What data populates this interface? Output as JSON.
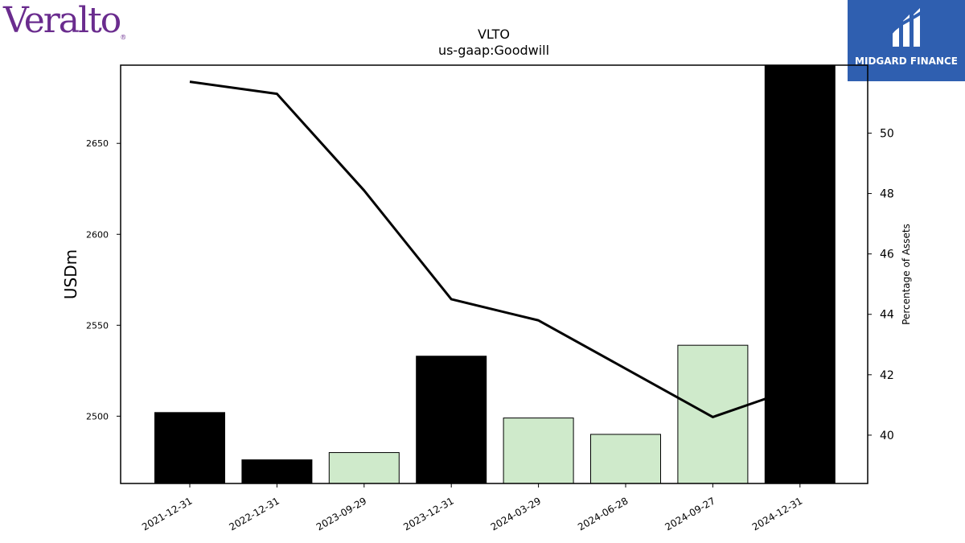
{
  "logos": {
    "left_text": "Veralto",
    "left_tm": "®",
    "left_color": "#6a2c8e",
    "right_text": "MIDGARD FINANCE",
    "right_color": "#2f5fb0"
  },
  "chart_data": {
    "type": "bar",
    "title": "VLTO",
    "subtitle": "us-gaap:Goodwill",
    "ylabel": "USDm",
    "y2label": "Percentage of Assets",
    "categories": [
      "2021-12-31",
      "2022-12-31",
      "2023-09-29",
      "2023-12-31",
      "2024-03-29",
      "2024-06-28",
      "2024-09-27",
      "2024-12-31"
    ],
    "series": [
      {
        "type": "bar",
        "axis": "left",
        "values": [
          2502,
          2476,
          2480,
          2533,
          2499,
          2490,
          2539,
          2701
        ],
        "colors": [
          "#000000",
          "#000000",
          "#cfeacb",
          "#000000",
          "#cfeacb",
          "#cfeacb",
          "#cfeacb",
          "#000000"
        ]
      },
      {
        "type": "line",
        "axis": "right",
        "values": [
          51.7,
          51.3,
          48.1,
          44.5,
          43.8,
          42.2,
          40.6,
          41.6
        ],
        "color": "#000000"
      }
    ],
    "ylim": [
      2463,
      2693
    ],
    "yticks": [
      2500,
      2550,
      2600,
      2650
    ],
    "y2lim": [
      38.4,
      52.25
    ],
    "y2ticks": [
      40,
      42,
      44,
      46,
      48,
      50
    ],
    "grid": false,
    "legend": "none"
  }
}
